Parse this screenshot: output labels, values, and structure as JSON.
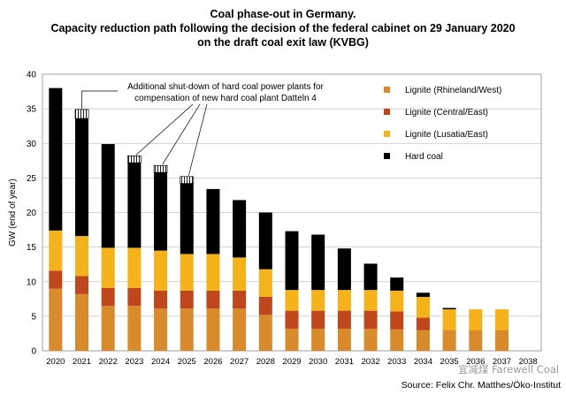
{
  "titles": {
    "line1": "Coal phase-out in Germany.",
    "line2": "Capacity reduction path following the decision of the federal cabinet on 29 January 2020",
    "line3": "on the draft coal exit law (KVBG)"
  },
  "annotation": "Additional shut-down of hard coal power plants for compensation of new hard coal plant Datteln 4",
  "annotation_lines": [
    "Additional shut-down of hard coal power plants for",
    "compensation of new hard coal plant Datteln 4"
  ],
  "source": "Source: Felix Chr. Matthes/Öko-Institut",
  "watermark": "宜减煤 Farewell Coal",
  "colors": {
    "lignite_rhineland_west": "#d98b2b",
    "lignite_central_east": "#c0461c",
    "lignite_lusatia_east": "#f5b319",
    "hard_coal": "#000000",
    "datteln_hatch": "#ffffff"
  },
  "chart_data": {
    "type": "bar",
    "stacked": true,
    "ylabel": "GW (end of year)",
    "ylim": [
      0,
      40
    ],
    "yticks": [
      0,
      5,
      10,
      15,
      20,
      25,
      30,
      35,
      40
    ],
    "grid": true,
    "legend_position": "right",
    "categories": [
      "2020",
      "2021",
      "2022",
      "2023",
      "2024",
      "2025",
      "2026",
      "2027",
      "2028",
      "2029",
      "2030",
      "2031",
      "2032",
      "2033",
      "2034",
      "2035",
      "2036",
      "2037",
      "2038"
    ],
    "series": [
      {
        "name": "Lignite (Rhineland/West)",
        "color_key": "lignite_rhineland_west",
        "values": [
          9.0,
          8.2,
          6.5,
          6.5,
          6.1,
          6.1,
          6.1,
          6.1,
          5.2,
          3.2,
          3.2,
          3.2,
          3.2,
          3.1,
          3.0,
          3.0,
          3.0,
          3.0,
          0
        ]
      },
      {
        "name": "Lignite (Central/East)",
        "color_key": "lignite_central_east",
        "values": [
          2.6,
          2.6,
          2.6,
          2.6,
          2.6,
          2.6,
          2.6,
          2.6,
          2.6,
          2.6,
          2.6,
          2.6,
          2.6,
          2.6,
          1.8,
          0,
          0,
          0,
          0
        ]
      },
      {
        "name": "Lignite (Lusatia/East)",
        "color_key": "lignite_lusatia_east",
        "values": [
          5.8,
          5.8,
          5.8,
          5.8,
          5.8,
          5.3,
          5.3,
          4.8,
          4.0,
          3.0,
          3.0,
          3.0,
          3.0,
          3.0,
          3.0,
          3.0,
          3.0,
          3.0,
          0
        ]
      },
      {
        "name": "Hard coal",
        "color_key": "hard_coal",
        "values": [
          20.6,
          17.0,
          15.0,
          12.3,
          11.3,
          10.2,
          9.4,
          8.3,
          8.2,
          8.5,
          8.0,
          6.0,
          3.8,
          1.9,
          0.6,
          0.2,
          0,
          0,
          0
        ]
      },
      {
        "name": "Datteln 4 compensation shut-down",
        "color_key": "datteln_hatch",
        "legend": false,
        "values": [
          0,
          1.3,
          0,
          1.0,
          1.0,
          1.0,
          0,
          0,
          0,
          0,
          0,
          0,
          0,
          0,
          0,
          0,
          0,
          0,
          0
        ]
      }
    ]
  }
}
